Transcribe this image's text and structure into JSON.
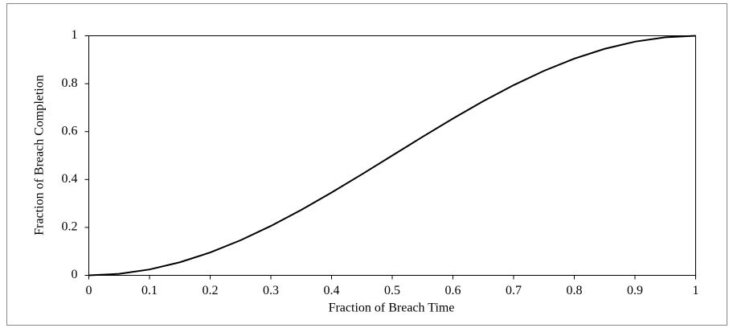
{
  "chart_data": {
    "type": "line",
    "x_label": "Fraction of Breach Time",
    "y_label": "Fraction of Breach Completion",
    "x": [
      0,
      0.05,
      0.1,
      0.15,
      0.2,
      0.25,
      0.3,
      0.35,
      0.4,
      0.45,
      0.5,
      0.55,
      0.6,
      0.65,
      0.7,
      0.75,
      0.8,
      0.85,
      0.9,
      0.95,
      1
    ],
    "series": [
      {
        "color": "#000000",
        "values": [
          0,
          0.0062,
          0.0245,
          0.0545,
          0.0955,
          0.1464,
          0.2061,
          0.273,
          0.3455,
          0.4218,
          0.5,
          0.5782,
          0.6545,
          0.727,
          0.7939,
          0.8536,
          0.9045,
          0.9455,
          0.9755,
          0.9938,
          1
        ]
      }
    ],
    "xlim": [
      0,
      1
    ],
    "xticks": [
      0,
      0.1,
      0.2,
      0.3,
      0.4,
      0.5,
      0.6,
      0.7,
      0.8,
      0.9,
      1
    ],
    "ylim": [
      0,
      1
    ],
    "yticks": [
      0,
      0.2,
      0.4,
      0.6,
      0.8,
      1
    ],
    "grid": false
  }
}
